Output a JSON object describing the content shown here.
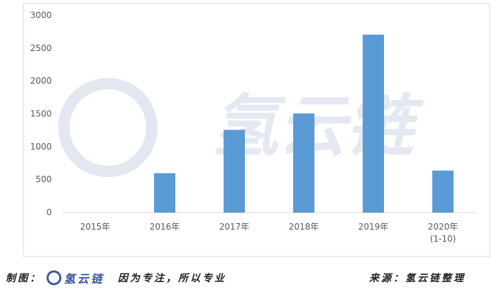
{
  "chart_data": {
    "type": "bar",
    "categories": [
      "2015年",
      "2016年",
      "2017年",
      "2018年",
      "2019年",
      "2020年\n(1-10)"
    ],
    "values": [
      0,
      600,
      1260,
      1510,
      2710,
      640
    ],
    "color": "#5b9bd5",
    "ylim": [
      0,
      3000
    ],
    "yticks": [
      0,
      500,
      1000,
      1500,
      2000,
      2500,
      3000
    ],
    "grid": false,
    "watermark": "氢云链"
  },
  "footer": {
    "maker_label": "制图：",
    "logo_text": "氢云链",
    "slogan": "因为专注，所以专业",
    "source": "来源：氢云链整理"
  }
}
